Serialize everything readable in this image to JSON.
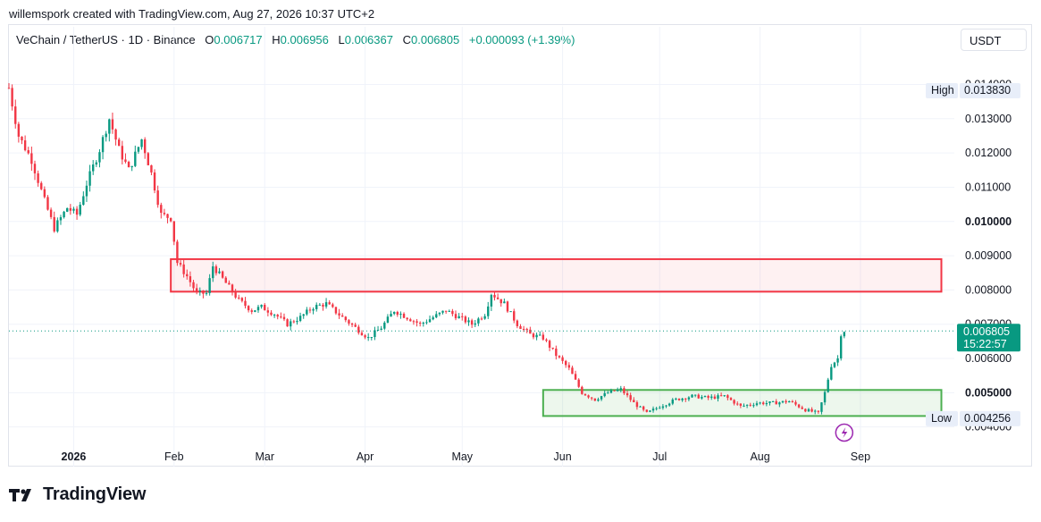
{
  "credit": "willemspork created with TradingView.com, Aug 27, 2026 10:37 UTC+2",
  "legend": {
    "symbol": "VeChain / TetherUS · 1D · Binance",
    "o_label": "O",
    "o": "0.006717",
    "h_label": "H",
    "h": "0.006956",
    "l_label": "L",
    "l": "0.006367",
    "c_label": "C",
    "c": "0.006805",
    "change": "+0.000093 (+1.39%)"
  },
  "currency": "USDT",
  "brand": "TradingView",
  "colors": {
    "up": "#089981",
    "down": "#f23645",
    "resistance": "#f23645",
    "support": "#4caf50",
    "grid": "#f0f3fa"
  },
  "chart_data": {
    "type": "candlestick",
    "y_ticks": [
      "0.014000",
      "0.013000",
      "0.012000",
      "0.011000",
      "0.010000",
      "0.009000",
      "0.008000",
      "0.007000",
      "0.006000",
      "0.005000",
      "0.004000"
    ],
    "bold_ticks": [
      "0.010000",
      "0.005000"
    ],
    "ylim": [
      0.0036,
      0.0149
    ],
    "x_ticks": [
      {
        "date": "2026-01-01",
        "label": "2026",
        "bold": true
      },
      {
        "date": "2026-02-01",
        "label": "Feb"
      },
      {
        "date": "2026-03-01",
        "label": "Mar"
      },
      {
        "date": "2026-04-01",
        "label": "Apr"
      },
      {
        "date": "2026-05-01",
        "label": "May"
      },
      {
        "date": "2026-06-01",
        "label": "Jun"
      },
      {
        "date": "2026-07-01",
        "label": "Jul"
      },
      {
        "date": "2026-08-01",
        "label": "Aug"
      },
      {
        "date": "2026-09-01",
        "label": "Sep"
      }
    ],
    "xlim": [
      "2025-12-12",
      "2026-09-30"
    ],
    "high_marker": {
      "label": "High",
      "value": "0.013830"
    },
    "low_marker": {
      "label": "Low",
      "value": "0.004256"
    },
    "last_price": {
      "value": "0.006805",
      "countdown": "15:22:57"
    },
    "zones": [
      {
        "name": "resistance",
        "from": "2026-01-31",
        "to": "2026-09-26",
        "top": 0.0089,
        "bottom": 0.00795
      },
      {
        "name": "support",
        "from": "2026-05-26",
        "to": "2026-09-26",
        "top": 0.00508,
        "bottom": 0.00432
      }
    ],
    "close_path": [
      [
        "2025-12-12",
        0.0139
      ],
      [
        "2025-12-15",
        0.0125
      ],
      [
        "2025-12-19",
        0.0118
      ],
      [
        "2025-12-23",
        0.0106
      ],
      [
        "2025-12-26",
        0.0098
      ],
      [
        "2025-12-30",
        0.0104
      ],
      [
        "2026-01-02",
        0.0102
      ],
      [
        "2026-01-05",
        0.0111
      ],
      [
        "2026-01-09",
        0.0121
      ],
      [
        "2026-01-12",
        0.013
      ],
      [
        "2026-01-15",
        0.0121
      ],
      [
        "2026-01-18",
        0.0115
      ],
      [
        "2026-01-22",
        0.0124
      ],
      [
        "2026-01-25",
        0.0114
      ],
      [
        "2026-01-28",
        0.0102
      ],
      [
        "2026-01-31",
        0.0101
      ],
      [
        "2026-02-02",
        0.0088
      ],
      [
        "2026-02-05",
        0.0084
      ],
      [
        "2026-02-08",
        0.0079
      ],
      [
        "2026-02-11",
        0.0079
      ],
      [
        "2026-02-13",
        0.0087
      ],
      [
        "2026-02-17",
        0.0082
      ],
      [
        "2026-02-21",
        0.0077
      ],
      [
        "2026-02-25",
        0.0074
      ],
      [
        "2026-02-28",
        0.0075
      ],
      [
        "2026-03-04",
        0.0073
      ],
      [
        "2026-03-08",
        0.007
      ],
      [
        "2026-03-12",
        0.0072
      ],
      [
        "2026-03-16",
        0.0075
      ],
      [
        "2026-03-20",
        0.0076
      ],
      [
        "2026-03-25",
        0.0072
      ],
      [
        "2026-03-29",
        0.0069
      ],
      [
        "2026-04-02",
        0.0066
      ],
      [
        "2026-04-06",
        0.0069
      ],
      [
        "2026-04-10",
        0.0074
      ],
      [
        "2026-04-14",
        0.0072
      ],
      [
        "2026-04-18",
        0.007
      ],
      [
        "2026-04-22",
        0.0072
      ],
      [
        "2026-04-26",
        0.0074
      ],
      [
        "2026-04-30",
        0.0072
      ],
      [
        "2026-05-04",
        0.007
      ],
      [
        "2026-05-08",
        0.0073
      ],
      [
        "2026-05-10",
        0.0079
      ],
      [
        "2026-05-14",
        0.0076
      ],
      [
        "2026-05-18",
        0.007
      ],
      [
        "2026-05-22",
        0.0067
      ],
      [
        "2026-05-26",
        0.0066
      ],
      [
        "2026-05-30",
        0.0061
      ],
      [
        "2026-06-03",
        0.0057
      ],
      [
        "2026-06-07",
        0.005
      ],
      [
        "2026-06-11",
        0.0048
      ],
      [
        "2026-06-15",
        0.005
      ],
      [
        "2026-06-19",
        0.0051
      ],
      [
        "2026-06-23",
        0.0047
      ],
      [
        "2026-06-27",
        0.0044
      ],
      [
        "2026-07-01",
        0.0046
      ],
      [
        "2026-07-06",
        0.0048
      ],
      [
        "2026-07-11",
        0.0049
      ],
      [
        "2026-07-16",
        0.00485
      ],
      [
        "2026-07-21",
        0.0049
      ],
      [
        "2026-07-26",
        0.0046
      ],
      [
        "2026-07-31",
        0.0047
      ],
      [
        "2026-08-05",
        0.0047
      ],
      [
        "2026-08-10",
        0.00475
      ],
      [
        "2026-08-15",
        0.0045
      ],
      [
        "2026-08-19",
        0.0044
      ],
      [
        "2026-08-21",
        0.005
      ],
      [
        "2026-08-23",
        0.0058
      ],
      [
        "2026-08-25",
        0.006
      ],
      [
        "2026-08-26",
        0.00672
      ],
      [
        "2026-08-27",
        0.00681
      ]
    ]
  }
}
